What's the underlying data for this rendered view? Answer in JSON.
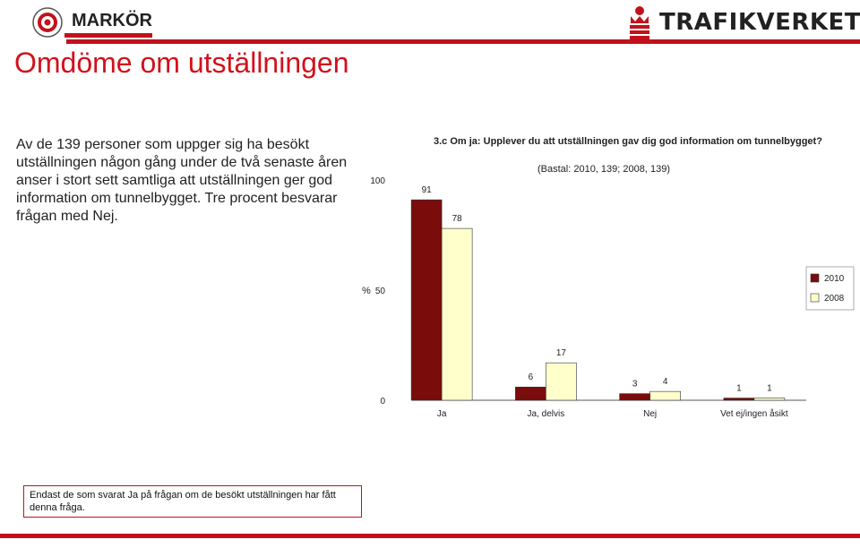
{
  "header": {
    "section_label": "MARKÖR",
    "brand_name": "TRAFIKVERKET"
  },
  "page": {
    "title": "Omdöme om utställningen",
    "intro_text": "Av de 139 personer som uppger sig ha besökt utställningen någon gång under de två senaste åren anser i stort sett samtliga att utställningen ger god information om tunnelbygget. Tre procent besvarar frågan med Nej.",
    "footnote": "Endast de som svarat Ja på frågan om de besökt utställningen har fått denna fråga."
  },
  "colors": {
    "brand_red": "#c1121c",
    "series_2010": "#7a0c0c",
    "series_2008": "#ffffcc"
  },
  "icons": {
    "left_logo": "target-icon",
    "brand_logo": "crown-emblem-icon"
  },
  "chart_data": {
    "type": "bar",
    "title": "3.c Om ja: Upplever du att utställningen gav dig god information om tunnelbygget?",
    "subtitle": "(Bastal: 2010, 139; 2008, 139)",
    "ylabel": "%",
    "ylim": [
      0,
      100
    ],
    "yticks": [
      "0",
      "50",
      "100"
    ],
    "categories": [
      "Ja",
      "Ja, delvis",
      "Nej",
      "Vet ej/ingen åsikt"
    ],
    "series": [
      {
        "name": "2010",
        "values": [
          91,
          6,
          3,
          1
        ],
        "labels": [
          "91",
          "6",
          "3",
          "1"
        ]
      },
      {
        "name": "2008",
        "values": [
          78,
          17,
          4,
          1
        ],
        "labels": [
          "78",
          "17",
          "4",
          "1"
        ]
      }
    ],
    "legend_position": "right"
  }
}
